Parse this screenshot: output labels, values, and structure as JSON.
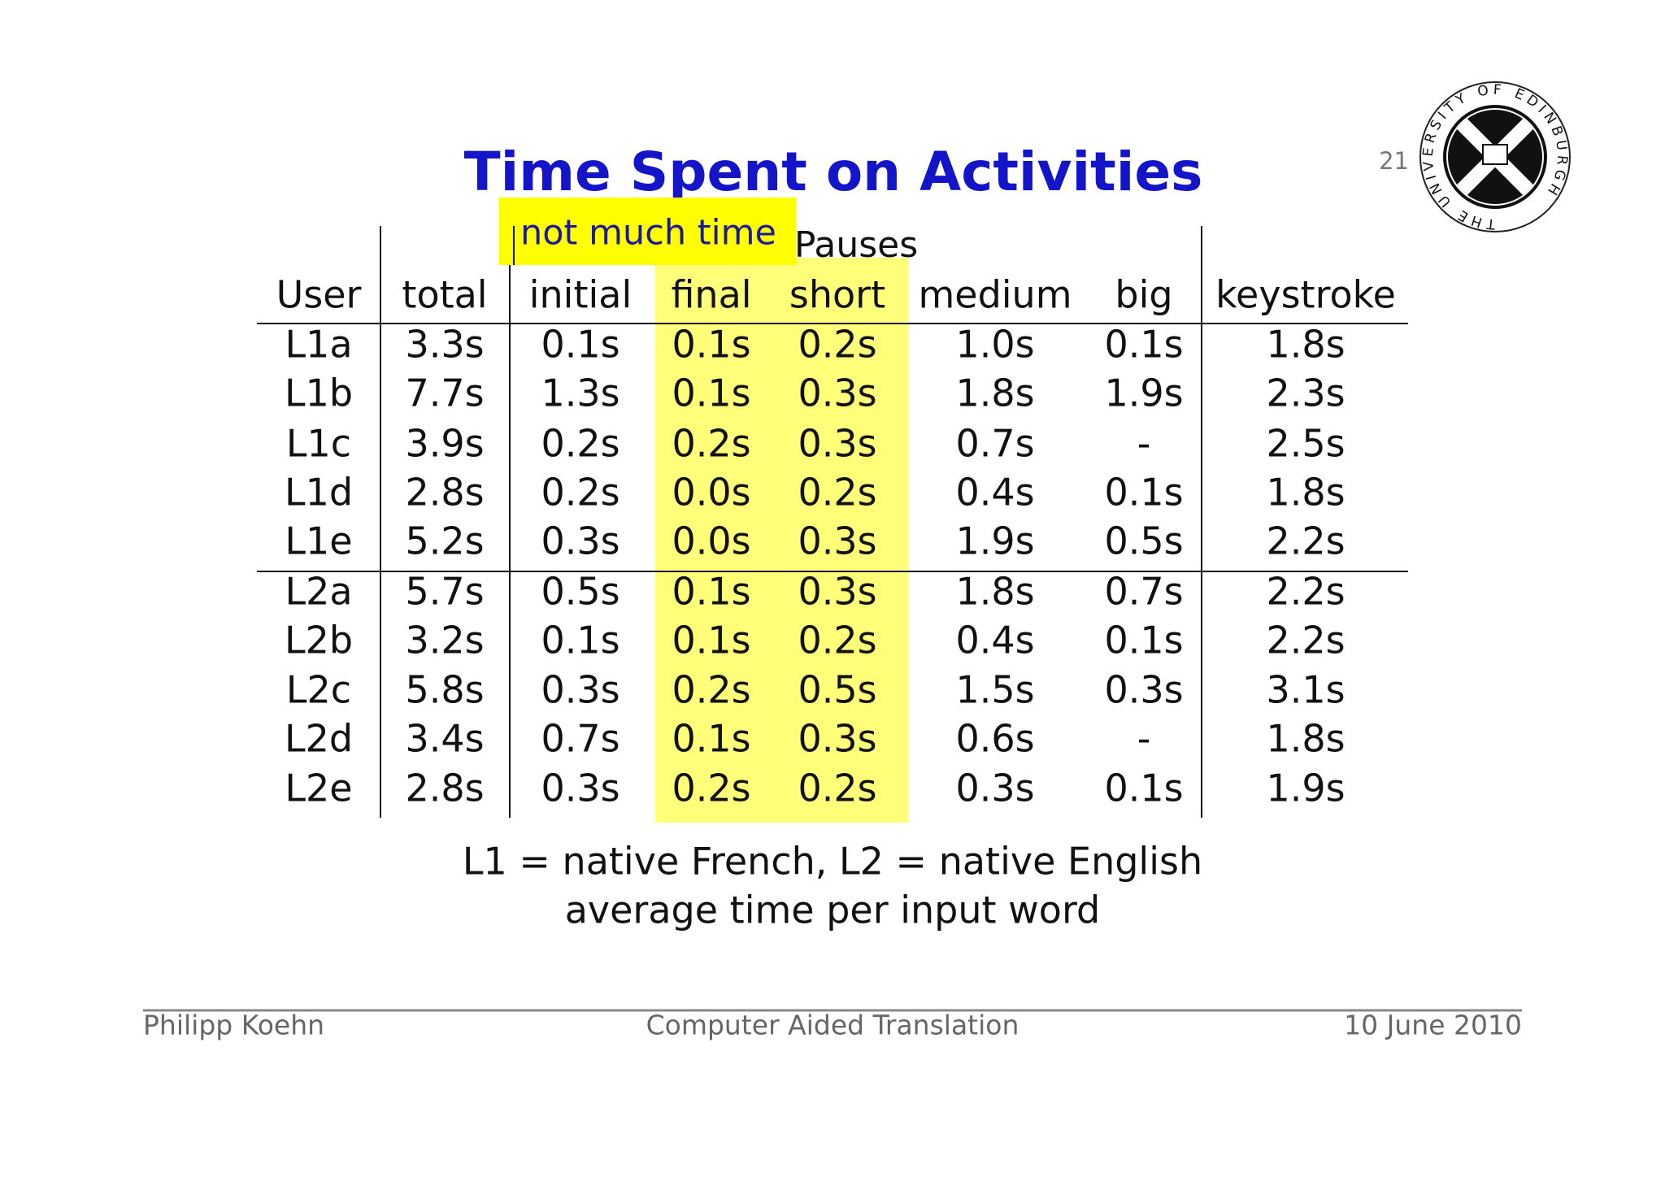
{
  "header": {
    "title": "Time Spent on Activities",
    "page_number": "21",
    "logo_text": "THE UNIVERSITY OF EDINBURGH"
  },
  "note": "not much time",
  "table": {
    "group_header": "Pauses",
    "columns": [
      "User",
      "total",
      "initial",
      "final",
      "short",
      "medium",
      "big",
      "keystroke"
    ],
    "rows": [
      [
        "L1a",
        "3.3s",
        "0.1s",
        "0.1s",
        "0.2s",
        "1.0s",
        "0.1s",
        "1.8s"
      ],
      [
        "L1b",
        "7.7s",
        "1.3s",
        "0.1s",
        "0.3s",
        "1.8s",
        "1.9s",
        "2.3s"
      ],
      [
        "L1c",
        "3.9s",
        "0.2s",
        "0.2s",
        "0.3s",
        "0.7s",
        "-",
        "2.5s"
      ],
      [
        "L1d",
        "2.8s",
        "0.2s",
        "0.0s",
        "0.2s",
        "0.4s",
        "0.1s",
        "1.8s"
      ],
      [
        "L1e",
        "5.2s",
        "0.3s",
        "0.0s",
        "0.3s",
        "1.9s",
        "0.5s",
        "2.2s"
      ],
      [
        "L2a",
        "5.7s",
        "0.5s",
        "0.1s",
        "0.3s",
        "1.8s",
        "0.7s",
        "2.2s"
      ],
      [
        "L2b",
        "3.2s",
        "0.1s",
        "0.1s",
        "0.2s",
        "0.4s",
        "0.1s",
        "2.2s"
      ],
      [
        "L2c",
        "5.8s",
        "0.3s",
        "0.2s",
        "0.5s",
        "1.5s",
        "0.3s",
        "3.1s"
      ],
      [
        "L2d",
        "3.4s",
        "0.7s",
        "0.1s",
        "0.3s",
        "0.6s",
        "-",
        "1.8s"
      ],
      [
        "L2e",
        "2.8s",
        "0.3s",
        "0.2s",
        "0.2s",
        "0.3s",
        "0.1s",
        "1.9s"
      ]
    ]
  },
  "caption": [
    "L1 = native French, L2 = native English",
    "average time per input word"
  ],
  "footer": {
    "left": "Philipp Koehn",
    "center": "Computer Aided Translation",
    "right": "10 June 2010"
  }
}
